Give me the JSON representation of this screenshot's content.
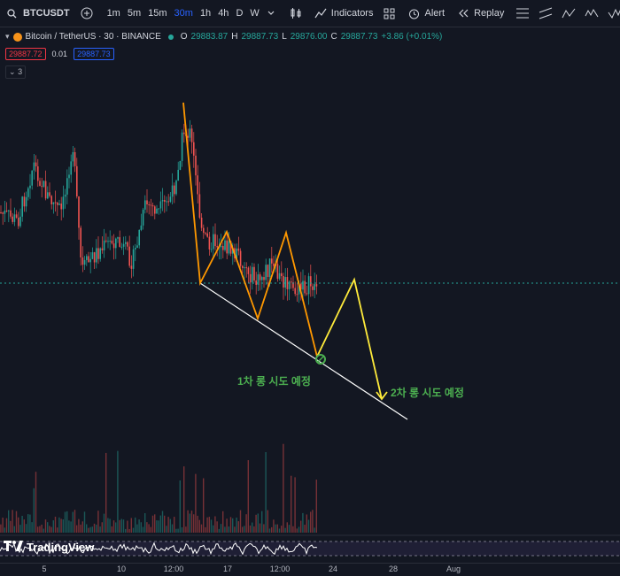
{
  "toolbar": {
    "symbol": "BTCUSDT",
    "intervals": [
      "1m",
      "5m",
      "15m",
      "30m",
      "1h",
      "4h",
      "D",
      "W"
    ],
    "active_interval": "30m",
    "indicators_label": "Indicators",
    "alert_label": "Alert",
    "replay_label": "Replay"
  },
  "legend": {
    "title": "Bitcoin / TetherUS · 30 · BINANCE",
    "o_label": "O",
    "o_value": "29883.87",
    "h_label": "H",
    "h_value": "29887.73",
    "l_label": "L",
    "l_value": "29876.00",
    "c_label": "C",
    "c_value": "29887.73",
    "change": "+3.86 (+0.01%)"
  },
  "price_box": {
    "sell": "29887.72",
    "spread": "0.01",
    "buy": "29887.73"
  },
  "collapse_count": "3",
  "annotations": {
    "first": "1차 롱 시도 예정",
    "second": "2차 롱 시도 예정"
  },
  "brand": "TradingView",
  "x_axis_labels": [
    "5",
    "10",
    "12:00",
    "17",
    "12:00",
    "24",
    "28",
    "Aug"
  ],
  "colors": {
    "background": "#131722",
    "up": "#26a69a",
    "down": "#ef5350",
    "orange_line": "#ff9800",
    "yellow_line": "#ffeb3b",
    "trendline": "#ffffff",
    "annotation": "#4caf50"
  }
}
